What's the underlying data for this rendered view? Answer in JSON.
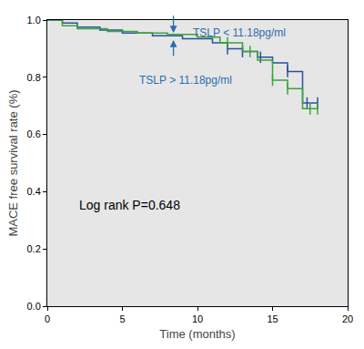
{
  "chart_data": {
    "type": "step",
    "xlabel": "Time (months)",
    "ylabel": "MACE free survival rate (%)",
    "xlim": [
      0,
      20
    ],
    "xticks": [
      0,
      5,
      10,
      15,
      20
    ],
    "ylim": [
      0,
      1
    ],
    "yticks": [
      {
        "value": 0,
        "label": "0.0"
      },
      {
        "value": 0.2,
        "label": "0.2"
      },
      {
        "value": 0.4,
        "label": "0.4"
      },
      {
        "value": 0.6,
        "label": "0.6"
      },
      {
        "value": 0.8,
        "label": "0.8"
      },
      {
        "value": 1,
        "label": "1.0"
      }
    ],
    "grid": false,
    "series": [
      {
        "name": "TSLP < 11.18pg/ml",
        "color": "#2b4f9e",
        "line_style": "solid",
        "x": [
          0,
          1,
          2,
          3.5,
          5,
          7,
          9,
          11,
          12,
          13,
          14,
          15,
          16,
          17,
          18
        ],
        "values": [
          1.0,
          0.99,
          0.975,
          0.965,
          0.955,
          0.945,
          0.935,
          0.92,
          0.9,
          0.89,
          0.87,
          0.85,
          0.82,
          0.71,
          0.71
        ],
        "censored": {
          "x": [
            12,
            13,
            14.2,
            16,
            17.3,
            18
          ],
          "values": [
            0.9,
            0.89,
            0.87,
            0.82,
            0.71,
            0.71
          ]
        }
      },
      {
        "name": "TSLP > 11.18pg/ml",
        "color": "#3aa43a",
        "line_style": "solid",
        "x": [
          0,
          1,
          2,
          4,
          6,
          8,
          10,
          11.5,
          13,
          14,
          15,
          16,
          17,
          18
        ],
        "values": [
          1.0,
          0.98,
          0.97,
          0.96,
          0.955,
          0.95,
          0.94,
          0.92,
          0.89,
          0.86,
          0.79,
          0.76,
          0.69,
          0.69
        ],
        "censored": {
          "x": [
            12,
            13.5,
            15,
            16,
            17.5,
            18
          ],
          "values": [
            0.92,
            0.89,
            0.79,
            0.76,
            0.69,
            0.69
          ]
        }
      }
    ],
    "annotations": [
      {
        "text": "TSLP < 11.18pg/ml",
        "x": 12.8,
        "y": 0.955,
        "color": "#2b6cb0",
        "arrow_from": [
          8.4,
          1.02
        ],
        "arrow_to": [
          8.4,
          0.955
        ]
      },
      {
        "text": "TSLP > 11.18pg/ml",
        "x": 9.2,
        "y": 0.79,
        "color": "#2b6cb0",
        "arrow_from": [
          8.4,
          0.87
        ],
        "arrow_to": [
          8.4,
          0.93
        ]
      },
      {
        "text": "Log rank P=0.648",
        "x": 5.5,
        "y": 0.353,
        "color": "#000000"
      }
    ],
    "tick_labels": true
  }
}
